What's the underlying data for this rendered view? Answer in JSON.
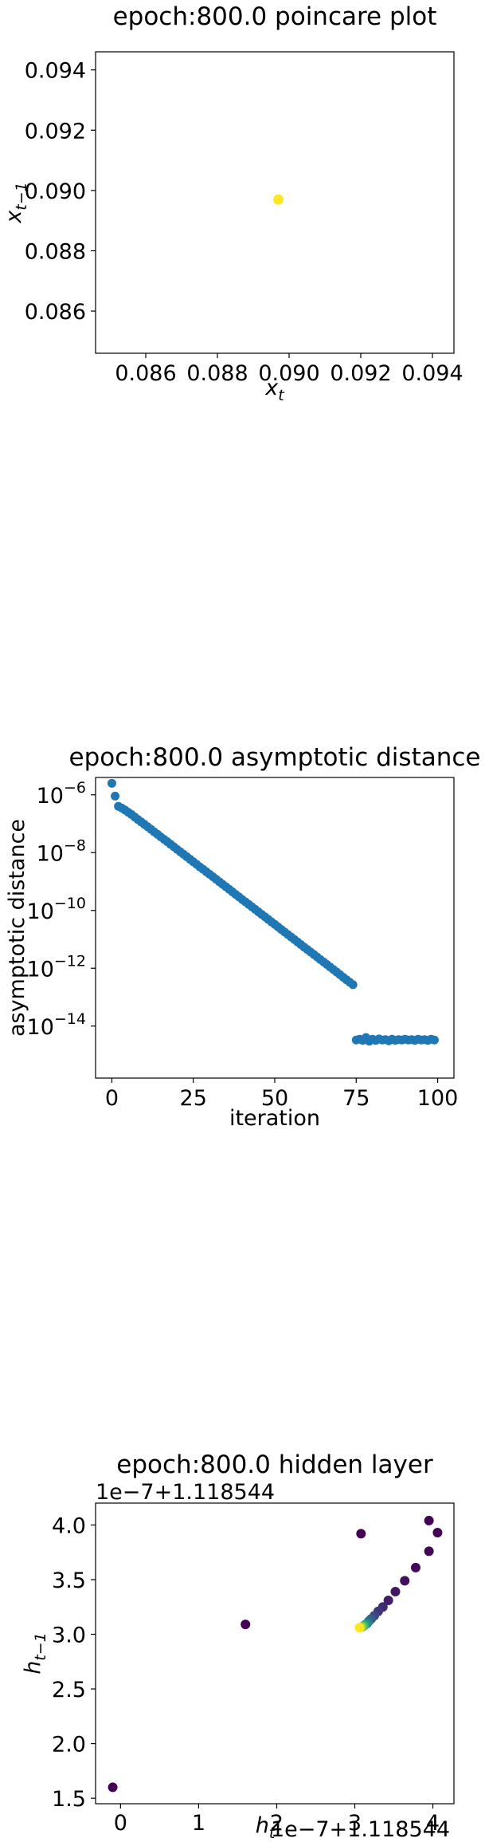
{
  "chart_data": [
    {
      "type": "scatter",
      "title": "epoch:800.0 poincare plot",
      "xlabel": "x_t",
      "ylabel": "x_{t-1}",
      "xlim": [
        0.0846,
        0.0946
      ],
      "ylim": [
        0.0846,
        0.0946
      ],
      "x_ticks": [
        0.086,
        0.088,
        0.09,
        0.092,
        0.094
      ],
      "x_tick_labels": [
        "0.086",
        "0.088",
        "0.090",
        "0.092",
        "0.094"
      ],
      "y_ticks": [
        0.086,
        0.088,
        0.09,
        0.092,
        0.094
      ],
      "y_tick_labels": [
        "0.086",
        "0.088",
        "0.090",
        "0.092",
        "0.094"
      ],
      "points": [
        {
          "x": 0.0897,
          "y": 0.0897
        }
      ],
      "color": "#fde725",
      "grid": false
    },
    {
      "type": "scatter",
      "title": "epoch:800.0 asymptotic distance",
      "xlabel": "iteration",
      "ylabel": "asymptotic distance",
      "xlim": [
        -5,
        105
      ],
      "ylim_log10": [
        -15.8,
        -5.4
      ],
      "y_scale": "log",
      "x_ticks": [
        0,
        25,
        50,
        75,
        100
      ],
      "x_tick_labels": [
        "0",
        "25",
        "50",
        "75",
        "100"
      ],
      "y_ticks_log10": [
        -6,
        -8,
        -10,
        -12,
        -14
      ],
      "y_tick_base": "10",
      "y_tick_exponents": [
        "−6",
        "−8",
        "−10",
        "−12",
        "−14"
      ],
      "color": "#1f77b4",
      "grid": false,
      "y": [
        2.5e-06,
        9e-07,
        4e-07,
        3.5e-07,
        3e-07,
        2.5e-07,
        2.1e-07,
        1.7e-07,
        1.4e-07,
        1.15e-07,
        9.5e-08,
        7.8e-08,
        6.4e-08,
        5.2e-08,
        4.3e-08,
        3.5e-08,
        2.9e-08,
        2.4e-08,
        1.95e-08,
        1.6e-08,
        1.3e-08,
        1.07e-08,
        8.8e-09,
        7.2e-09,
        5.9e-09,
        4.8e-09,
        3.95e-09,
        3.2e-09,
        2.65e-09,
        2.17e-09,
        1.78e-09,
        1.46e-09,
        1.2e-09,
        9.8e-10,
        8e-10,
        6.6e-10,
        5.4e-10,
        4.4e-10,
        3.6e-10,
        2.95e-10,
        2.4e-10,
        1.98e-10,
        1.62e-10,
        1.33e-10,
        1.09e-10,
        8.9e-11,
        7.3e-11,
        6e-11,
        4.9e-11,
        4e-11,
        3.3e-11,
        2.7e-11,
        2.2e-11,
        1.8e-11,
        1.48e-11,
        1.21e-11,
        9.9e-12,
        8.1e-12,
        6.6e-12,
        5.4e-12,
        4.45e-12,
        3.65e-12,
        3e-12,
        2.45e-12,
        2e-12,
        1.65e-12,
        1.35e-12,
        1.1e-12,
        9e-13,
        7.4e-13,
        6e-13,
        4.9e-13,
        4e-13,
        3.3e-13,
        2.7e-13,
        3.3e-15,
        3.5e-15,
        3.2e-15,
        4e-15,
        3e-15,
        3.5e-15,
        3.2e-15,
        3.6e-15,
        3.3e-15,
        3.4e-15,
        3.1e-15,
        3.5e-15,
        3.2e-15,
        3.4e-15,
        3.3e-15,
        3.5e-15,
        3.3e-15,
        3.4e-15,
        3.2e-15,
        3.5e-15,
        3.3e-15,
        3.4e-15,
        3.2e-15,
        3.5e-15,
        3.3e-15
      ]
    },
    {
      "type": "scatter",
      "title": "epoch:800.0 hidden layer",
      "xlabel": "h_t",
      "ylabel": "h_{t-1}",
      "x_offset_text": "1e−7+1.118544",
      "y_offset_text": "1e−7+1.118544",
      "xlim": [
        -0.32,
        4.27
      ],
      "ylim": [
        1.45,
        4.2
      ],
      "x_ticks": [
        0,
        1,
        2,
        3,
        4
      ],
      "x_tick_labels": [
        "0",
        "1",
        "2",
        "3",
        "4"
      ],
      "y_ticks": [
        1.5,
        2.0,
        2.5,
        3.0,
        3.5,
        4.0
      ],
      "y_tick_labels": [
        "1.5",
        "2.0",
        "2.5",
        "3.0",
        "3.5",
        "4.0"
      ],
      "colormap": "viridis",
      "grid": false,
      "points": [
        {
          "x": -0.1,
          "y": 1.6
        },
        {
          "x": 1.6,
          "y": 3.09
        },
        {
          "x": 3.08,
          "y": 3.92
        },
        {
          "x": 3.95,
          "y": 4.04
        },
        {
          "x": 4.06,
          "y": 3.93
        },
        {
          "x": 3.95,
          "y": 3.76
        },
        {
          "x": 3.78,
          "y": 3.61
        },
        {
          "x": 3.64,
          "y": 3.49
        },
        {
          "x": 3.52,
          "y": 3.39
        },
        {
          "x": 3.43,
          "y": 3.31
        },
        {
          "x": 3.36,
          "y": 3.25
        },
        {
          "x": 3.3,
          "y": 3.21
        },
        {
          "x": 3.25,
          "y": 3.17
        },
        {
          "x": 3.21,
          "y": 3.14
        },
        {
          "x": 3.18,
          "y": 3.12
        },
        {
          "x": 3.16,
          "y": 3.1
        },
        {
          "x": 3.14,
          "y": 3.09
        },
        {
          "x": 3.12,
          "y": 3.08
        },
        {
          "x": 3.1,
          "y": 3.07
        },
        {
          "x": 3.08,
          "y": 3.065
        },
        {
          "x": 3.06,
          "y": 3.06
        }
      ]
    }
  ]
}
